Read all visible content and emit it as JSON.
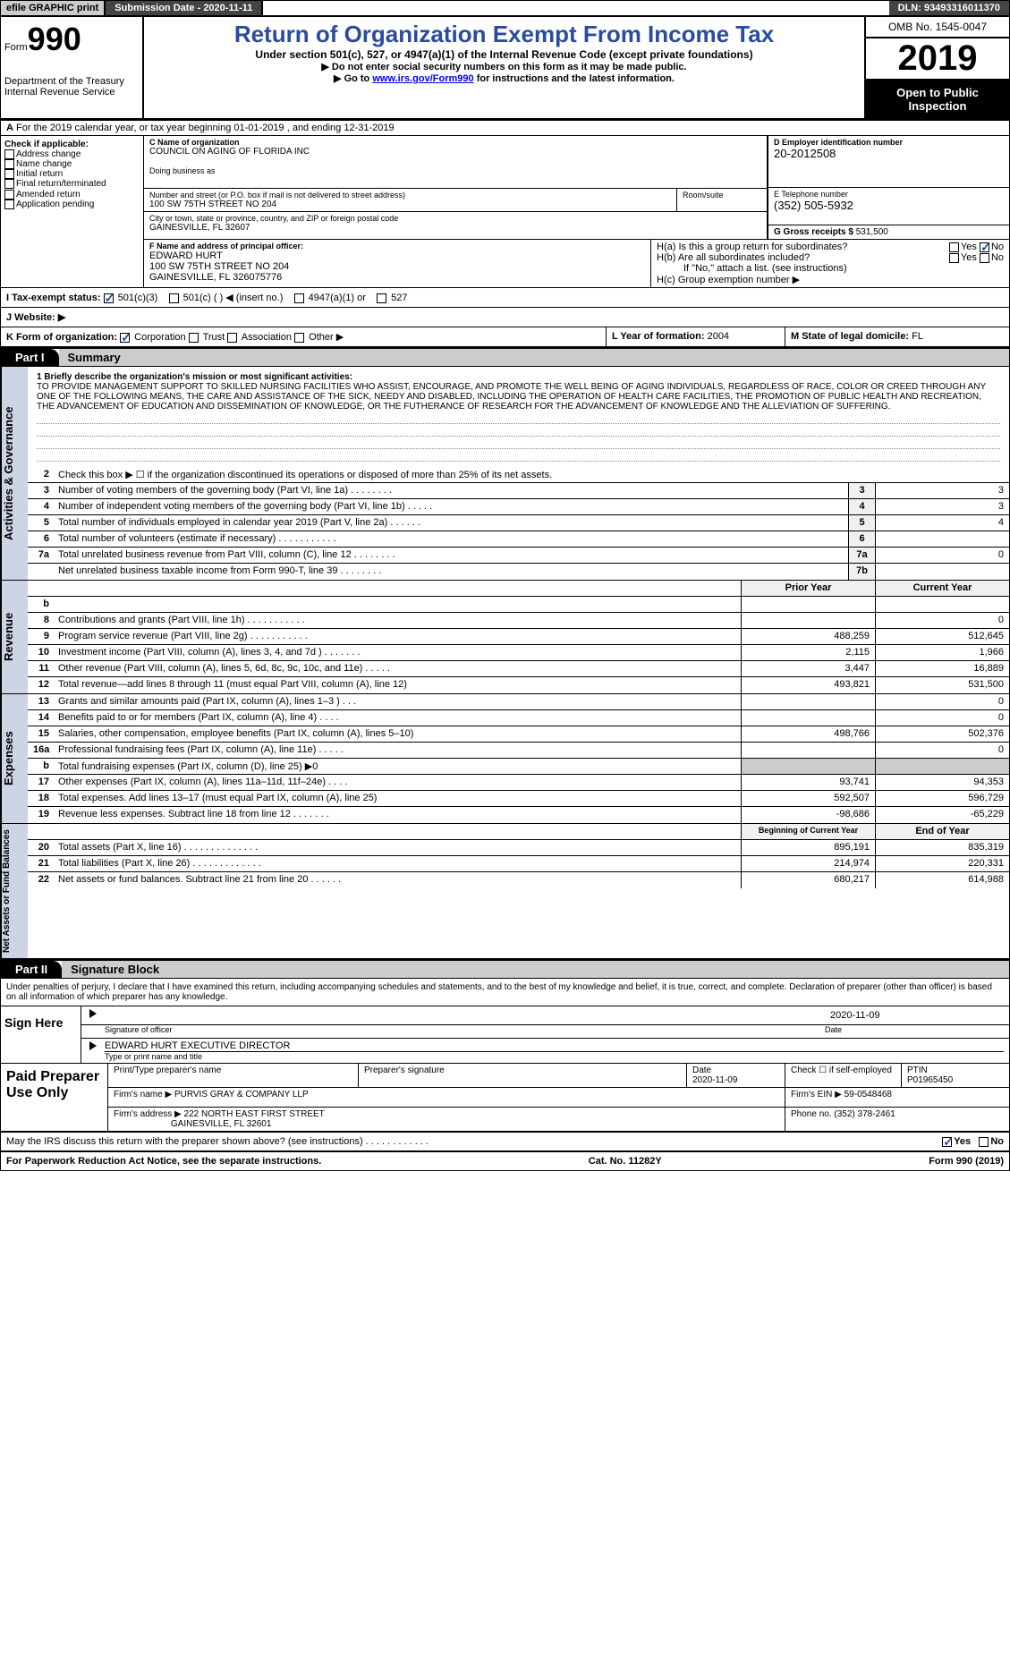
{
  "topbar": {
    "efile": "efile GRAPHIC print",
    "submission": "Submission Date - 2020-11-11",
    "dln": "DLN: 93493316011370"
  },
  "header": {
    "form_prefix": "Form",
    "form_number": "990",
    "dept": "Department of the Treasury",
    "irs": "Internal Revenue Service",
    "title": "Return of Organization Exempt From Income Tax",
    "subtitle": "Under section 501(c), 527, or 4947(a)(1) of the Internal Revenue Code (except private foundations)",
    "note1": "▶ Do not enter social security numbers on this form as it may be made public.",
    "note2_pre": "▶ Go to ",
    "note2_link": "www.irs.gov/Form990",
    "note2_post": " for instructions and the latest information.",
    "omb": "OMB No. 1545-0047",
    "year": "2019",
    "inspect": "Open to Public Inspection"
  },
  "row_a": "For the 2019 calendar year, or tax year beginning 01-01-2019   , and ending 12-31-2019",
  "section_b": {
    "header": "Check if applicable:",
    "items": [
      "Address change",
      "Name change",
      "Initial return",
      "Final return/terminated",
      "Amended return",
      "Application pending"
    ]
  },
  "section_c": {
    "name_label": "C Name of organization",
    "name": "COUNCIL ON AGING OF FLORIDA INC",
    "dba_label": "Doing business as",
    "addr_label": "Number and street (or P.O. box if mail is not delivered to street address)",
    "room_label": "Room/suite",
    "addr": "100 SW 75TH STREET NO 204",
    "city_label": "City or town, state or province, country, and ZIP or foreign postal code",
    "city": "GAINESVILLE, FL  32607"
  },
  "section_d": {
    "label": "D Employer identification number",
    "value": "20-2012508"
  },
  "section_e": {
    "label": "E Telephone number",
    "value": "(352) 505-5932"
  },
  "section_g": {
    "label": "G Gross receipts $",
    "value": "531,500"
  },
  "section_f": {
    "label": "F  Name and address of principal officer:",
    "name": "EDWARD HURT",
    "addr1": "100 SW 75TH STREET NO 204",
    "addr2": "GAINESVILLE, FL  326075776"
  },
  "section_h": {
    "ha": "H(a)  Is this a group return for subordinates?",
    "hb": "H(b)  Are all subordinates included?",
    "hb_note": "If \"No,\" attach a list. (see instructions)",
    "hc": "H(c)  Group exemption number ▶",
    "yes": "Yes",
    "no": "No"
  },
  "row_i": {
    "label": "I   Tax-exempt status:",
    "opts": [
      "501(c)(3)",
      "501(c) (   ) ◀ (insert no.)",
      "4947(a)(1) or",
      "527"
    ]
  },
  "row_j": {
    "label": "J  Website: ▶"
  },
  "row_k": {
    "label": "K Form of organization:",
    "opts": [
      "Corporation",
      "Trust",
      "Association",
      "Other ▶"
    ],
    "l_label": "L Year of formation:",
    "l_val": "2004",
    "m_label": "M State of legal domicile:",
    "m_val": "FL"
  },
  "part1": {
    "tab": "Part I",
    "title": "Summary"
  },
  "mission": {
    "intro": "1    Briefly describe the organization's mission or most significant activities:",
    "text": "TO PROVIDE MANAGEMENT SUPPORT TO SKILLED NURSING FACILITIES WHO ASSIST, ENCOURAGE, AND PROMOTE THE WELL BEING OF AGING INDIVIDUALS, REGARDLESS OF RACE, COLOR OR CREED THROUGH ANY ONE OF THE FOLLOWING MEANS, THE CARE AND ASSISTANCE OF THE SICK, NEEDY AND DISABLED, INCLUDING THE OPERATION OF HEALTH CARE FACILITIES, THE PROMOTION OF PUBLIC HEALTH AND RECREATION, THE ADVANCEMENT OF EDUCATION AND DISSEMINATION OF KNOWLEDGE, OR THE FUTHERANCE OF RESEARCH FOR THE ADVANCEMENT OF KNOWLEDGE AND THE ALLEVIATION OF SUFFERING."
  },
  "side_labels": {
    "gov": "Activities & Governance",
    "rev": "Revenue",
    "exp": "Expenses",
    "net": "Net Assets or Fund Balances"
  },
  "gov_lines": [
    {
      "n": "2",
      "d": "Check this box ▶ ☐ if the organization discontinued its operations or disposed of more than 25% of its net assets."
    },
    {
      "n": "3",
      "d": "Number of voting members of the governing body (Part VI, line 1a)   .    .    .    .    .    .    .    .",
      "c": "3",
      "v": "3"
    },
    {
      "n": "4",
      "d": "Number of independent voting members of the governing body (Part VI, line 1b)    .    .    .    .    .",
      "c": "4",
      "v": "3"
    },
    {
      "n": "5",
      "d": "Total number of individuals employed in calendar year 2019 (Part V, line 2a)    .    .    .    .    .    .",
      "c": "5",
      "v": "4"
    },
    {
      "n": "6",
      "d": "Total number of volunteers (estimate if necessary)    .    .    .    .    .    .    .    .    .    .    .",
      "c": "6",
      "v": ""
    },
    {
      "n": "7a",
      "d": "Total unrelated business revenue from Part VIII, column (C), line 12    .    .    .    .    .    .    .    .",
      "c": "7a",
      "v": "0"
    },
    {
      "n": "",
      "d": "Net unrelated business taxable income from Form 990-T, line 39    .    .    .    .    .    .    .    .",
      "c": "7b",
      "v": ""
    }
  ],
  "year_hdr": {
    "prior": "Prior Year",
    "current": "Current Year",
    "boc": "Beginning of Current Year",
    "eoy": "End of Year"
  },
  "rev_lines": [
    {
      "n": "b",
      "d": "",
      "p": "",
      "c": "",
      "shade": true
    },
    {
      "n": "8",
      "d": "Contributions and grants (Part VIII, line 1h)    .    .    .    .    .    .    .    .    .    .    .",
      "p": "",
      "c": "0"
    },
    {
      "n": "9",
      "d": "Program service revenue (Part VIII, line 2g)    .    .    .    .    .    .    .    .    .    .    .",
      "p": "488,259",
      "c": "512,645"
    },
    {
      "n": "10",
      "d": "Investment income (Part VIII, column (A), lines 3, 4, and 7d )    .    .    .    .    .    .    .",
      "p": "2,115",
      "c": "1,966"
    },
    {
      "n": "11",
      "d": "Other revenue (Part VIII, column (A), lines 5, 6d, 8c, 9c, 10c, and 11e)    .    .    .    .    .",
      "p": "3,447",
      "c": "16,889"
    },
    {
      "n": "12",
      "d": "Total revenue—add lines 8 through 11 (must equal Part VIII, column (A), line 12)",
      "p": "493,821",
      "c": "531,500"
    }
  ],
  "exp_lines": [
    {
      "n": "13",
      "d": "Grants and similar amounts paid (Part IX, column (A), lines 1–3 )    .    .    .",
      "p": "",
      "c": "0"
    },
    {
      "n": "14",
      "d": "Benefits paid to or for members (Part IX, column (A), line 4)    .    .    .    .",
      "p": "",
      "c": "0"
    },
    {
      "n": "15",
      "d": "Salaries, other compensation, employee benefits (Part IX, column (A), lines 5–10)",
      "p": "498,766",
      "c": "502,376"
    },
    {
      "n": "16a",
      "d": "Professional fundraising fees (Part IX, column (A), line 11e)    .    .    .    .    .",
      "p": "",
      "c": "0"
    },
    {
      "n": "b",
      "d": "Total fundraising expenses (Part IX, column (D), line 25) ▶0",
      "p": "shade",
      "c": "shade"
    },
    {
      "n": "17",
      "d": "Other expenses (Part IX, column (A), lines 11a–11d, 11f–24e)    .    .    .    .",
      "p": "93,741",
      "c": "94,353"
    },
    {
      "n": "18",
      "d": "Total expenses. Add lines 13–17 (must equal Part IX, column (A), line 25)",
      "p": "592,507",
      "c": "596,729"
    },
    {
      "n": "19",
      "d": "Revenue less expenses. Subtract line 18 from line 12    .    .    .    .    .    .    .",
      "p": "-98,686",
      "c": "-65,229"
    }
  ],
  "net_lines": [
    {
      "n": "20",
      "d": "Total assets (Part X, line 16)    .    .    .    .    .    .    .    .    .    .    .    .    .    .",
      "p": "895,191",
      "c": "835,319"
    },
    {
      "n": "21",
      "d": "Total liabilities (Part X, line 26)    .    .    .    .    .    .    .    .    .    .    .    .    .",
      "p": "214,974",
      "c": "220,331"
    },
    {
      "n": "22",
      "d": "Net assets or fund balances. Subtract line 21 from line 20    .    .    .    .    .    .",
      "p": "680,217",
      "c": "614,988"
    }
  ],
  "part2": {
    "tab": "Part II",
    "title": "Signature Block"
  },
  "perjury": "Under penalties of perjury, I declare that I have examined this return, including accompanying schedules and statements, and to the best of my knowledge and belief, it is true, correct, and complete. Declaration of preparer (other than officer) is based on all information of which preparer has any knowledge.",
  "sign": {
    "here": "Sign Here",
    "sig_label": "Signature of officer",
    "date": "2020-11-09",
    "date_label": "Date",
    "name": "EDWARD HURT  EXECUTIVE DIRECTOR",
    "name_label": "Type or print name and title"
  },
  "preparer": {
    "label": "Paid Preparer Use Only",
    "print_label": "Print/Type preparer's name",
    "sig_label": "Preparer's signature",
    "date_label": "Date",
    "date": "2020-11-09",
    "check_label": "Check ☐ if self-employed",
    "ptin_label": "PTIN",
    "ptin": "P01965450",
    "firm_name_label": "Firm's name    ▶",
    "firm_name": "PURVIS GRAY & COMPANY LLP",
    "firm_ein_label": "Firm's EIN ▶",
    "firm_ein": "59-0548468",
    "firm_addr_label": "Firm's address ▶",
    "firm_addr1": "222 NORTH EAST FIRST STREET",
    "firm_addr2": "GAINESVILLE, FL  32601",
    "phone_label": "Phone no.",
    "phone": "(352) 378-2461"
  },
  "discuss": {
    "text": "May the IRS discuss this return with the preparer shown above? (see instructions)    .    .    .    .    .    .    .    .    .    .    .    .",
    "yes": "Yes",
    "no": "No"
  },
  "footer": {
    "left": "For Paperwork Reduction Act Notice, see the separate instructions.",
    "mid": "Cat. No. 11282Y",
    "right": "Form 990 (2019)"
  }
}
